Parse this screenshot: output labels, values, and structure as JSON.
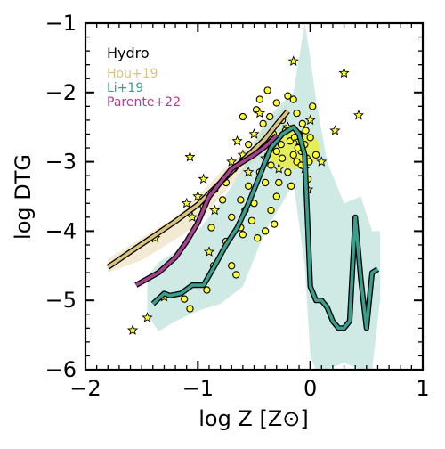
{
  "chart_data": {
    "type": "line",
    "title": "",
    "xlabel": "log Z [Z⊙]",
    "ylabel": "log DTG",
    "xlim": [
      -2,
      1
    ],
    "ylim": [
      -6,
      -1
    ],
    "xticks": [
      -2,
      -1,
      0,
      1
    ],
    "yticks": [
      -6,
      -5,
      -4,
      -3,
      -2,
      -1
    ],
    "xtick_labels": [
      "−2",
      "−1",
      "0",
      "1"
    ],
    "ytick_labels": [
      "−6",
      "−5",
      "−4",
      "−3",
      "−2",
      "−1"
    ],
    "grid": false,
    "legend_position": "top-left",
    "annotation": "Hydro",
    "colors": {
      "hou": "#d9c27a",
      "li": "#3a9e8e",
      "parente": "#a8408f",
      "band_li": "#b5dfd6",
      "band_hou": "#ece1bf",
      "points": "#ffff33"
    },
    "series": [
      {
        "name": "Hou+19",
        "color": "#d9c27a",
        "x": [
          -1.8,
          -1.6,
          -1.4,
          -1.2,
          -1.0,
          -0.8,
          -0.6,
          -0.4,
          -0.3,
          -0.2
        ],
        "y": [
          -4.52,
          -4.3,
          -4.08,
          -3.86,
          -3.62,
          -3.3,
          -2.98,
          -2.67,
          -2.46,
          -2.27
        ]
      },
      {
        "name": "Li+19",
        "color": "#3a9e8e",
        "x": [
          -1.4,
          -1.3,
          -1.25,
          -1.15,
          -1.05,
          -0.95,
          -0.85,
          -0.75,
          -0.65,
          -0.55,
          -0.45,
          -0.35,
          -0.25,
          -0.2,
          -0.15,
          -0.1,
          -0.05,
          0.0,
          0.05,
          0.1,
          0.15,
          0.2,
          0.25,
          0.3,
          0.35,
          0.4,
          0.45,
          0.5,
          0.55,
          0.6
        ],
        "y": [
          -5.05,
          -4.9,
          -4.93,
          -4.9,
          -4.78,
          -4.78,
          -4.5,
          -4.2,
          -3.95,
          -3.6,
          -3.2,
          -2.8,
          -2.6,
          -2.55,
          -2.5,
          -2.6,
          -2.9,
          -4.8,
          -5.0,
          -5.0,
          -5.1,
          -5.3,
          -5.4,
          -5.4,
          -5.3,
          -3.8,
          -4.7,
          -5.4,
          -4.6,
          -4.55
        ]
      },
      {
        "name": "Parente+22",
        "color": "#a8408f",
        "x": [
          -1.55,
          -1.35,
          -1.2,
          -1.1,
          -1.0,
          -0.9,
          -0.8,
          -0.7,
          -0.6,
          -0.5,
          -0.4,
          -0.3
        ],
        "y": [
          -4.78,
          -4.6,
          -4.38,
          -4.15,
          -3.88,
          -3.5,
          -3.3,
          -3.1,
          -3.0,
          -2.9,
          -2.78,
          -2.62
        ]
      }
    ],
    "band_li": {
      "x": [
        -1.45,
        -1.35,
        -1.2,
        -1.0,
        -0.8,
        -0.6,
        -0.4,
        -0.25,
        -0.15,
        -0.05,
        0.0,
        0.05,
        0.15,
        0.3,
        0.45,
        0.55,
        0.62
      ],
      "y_high": [
        -4.65,
        -4.45,
        -4.3,
        -4.0,
        -3.6,
        -3.1,
        -2.4,
        -2.15,
        -2.0,
        -1.0,
        -1.5,
        -2.1,
        -3.0,
        -3.6,
        -3.5,
        -4.0,
        -4.0
      ],
      "y_low": [
        -5.2,
        -5.45,
        -5.3,
        -5.15,
        -5.05,
        -4.8,
        -4.0,
        -3.6,
        -3.3,
        -4.5,
        -5.8,
        -6.0,
        -6.0,
        -5.9,
        -6.0,
        -6.0,
        -5.0
      ]
    },
    "band_hou": {
      "x": [
        -1.8,
        -1.5,
        -1.2,
        -1.0,
        -0.8,
        -0.6,
        -0.4,
        -0.2
      ],
      "y_high": [
        -4.4,
        -4.1,
        -3.8,
        -3.5,
        -3.15,
        -2.85,
        -2.5,
        -2.15
      ],
      "y_low": [
        -4.6,
        -4.42,
        -4.12,
        -3.9,
        -3.5,
        -3.15,
        -2.85,
        -2.45
      ]
    },
    "stars": [
      {
        "x": -1.58,
        "y": -5.43
      },
      {
        "x": -1.45,
        "y": -5.25
      },
      {
        "x": -1.38,
        "y": -4.1
      },
      {
        "x": -1.3,
        "y": -4.95
      },
      {
        "x": -1.1,
        "y": -3.6
      },
      {
        "x": -1.05,
        "y": -3.8
      },
      {
        "x": -1.0,
        "y": -3.5
      },
      {
        "x": -1.07,
        "y": -2.93
      },
      {
        "x": -0.85,
        "y": -3.7
      },
      {
        "x": -0.9,
        "y": -4.3
      },
      {
        "x": -0.6,
        "y": -2.9
      },
      {
        "x": -0.55,
        "y": -3.15
      },
      {
        "x": -0.5,
        "y": -2.6
      },
      {
        "x": -0.45,
        "y": -2.3
      },
      {
        "x": -0.35,
        "y": -2.8
      },
      {
        "x": -0.2,
        "y": -2.5
      },
      {
        "x": -0.15,
        "y": -1.55
      },
      {
        "x": -0.1,
        "y": -2.7
      },
      {
        "x": -0.05,
        "y": -3.1
      },
      {
        "x": 0.0,
        "y": -2.4
      },
      {
        "x": -0.02,
        "y": -3.4
      },
      {
        "x": 0.1,
        "y": -3.0
      },
      {
        "x": 0.22,
        "y": -2.55
      },
      {
        "x": 0.3,
        "y": -1.72
      },
      {
        "x": 0.43,
        "y": -2.33
      },
      {
        "x": -0.28,
        "y": -3.1
      },
      {
        "x": -0.4,
        "y": -2.95
      },
      {
        "x": -0.7,
        "y": -3.0
      },
      {
        "x": -0.95,
        "y": -3.25
      },
      {
        "x": -0.65,
        "y": -2.7
      }
    ],
    "circles": [
      {
        "x": -1.12,
        "y": -4.98
      },
      {
        "x": -1.07,
        "y": -5.12
      },
      {
        "x": -0.92,
        "y": -4.85
      },
      {
        "x": -0.86,
        "y": -4.5
      },
      {
        "x": -0.7,
        "y": -4.5
      },
      {
        "x": -0.66,
        "y": -4.63
      },
      {
        "x": -0.75,
        "y": -4.15
      },
      {
        "x": -0.6,
        "y": -4.05
      },
      {
        "x": -0.47,
        "y": -4.1
      },
      {
        "x": -0.4,
        "y": -4.0
      },
      {
        "x": -0.35,
        "y": -3.7
      },
      {
        "x": -0.3,
        "y": -3.5
      },
      {
        "x": -0.85,
        "y": -3.4
      },
      {
        "x": -0.75,
        "y": -3.3
      },
      {
        "x": -0.68,
        "y": -3.1
      },
      {
        "x": -0.62,
        "y": -3.55
      },
      {
        "x": -0.55,
        "y": -3.35
      },
      {
        "x": -0.5,
        "y": -3.6
      },
      {
        "x": -0.45,
        "y": -3.15
      },
      {
        "x": -0.4,
        "y": -3.3
      },
      {
        "x": -0.35,
        "y": -3.05
      },
      {
        "x": -0.3,
        "y": -2.85
      },
      {
        "x": -0.25,
        "y": -2.95
      },
      {
        "x": -0.2,
        "y": -3.15
      },
      {
        "x": -0.18,
        "y": -2.7
      },
      {
        "x": -0.15,
        "y": -2.9
      },
      {
        "x": -0.12,
        "y": -3.0
      },
      {
        "x": -0.1,
        "y": -2.6
      },
      {
        "x": -0.08,
        "y": -2.85
      },
      {
        "x": -0.05,
        "y": -2.75
      },
      {
        "x": -0.03,
        "y": -2.95
      },
      {
        "x": 0.0,
        "y": -2.65
      },
      {
        "x": -0.25,
        "y": -2.4
      },
      {
        "x": -0.3,
        "y": -2.15
      },
      {
        "x": -0.42,
        "y": -2.45
      },
      {
        "x": -0.48,
        "y": -2.25
      },
      {
        "x": -0.55,
        "y": -2.75
      },
      {
        "x": -0.6,
        "y": -2.35
      },
      {
        "x": -0.38,
        "y": -1.97
      },
      {
        "x": -0.45,
        "y": -2.1
      },
      {
        "x": -0.22,
        "y": -2.55
      },
      {
        "x": -0.12,
        "y": -2.3
      },
      {
        "x": -0.07,
        "y": -2.45
      },
      {
        "x": 0.02,
        "y": -2.2
      },
      {
        "x": -0.02,
        "y": -3.25
      },
      {
        "x": 0.05,
        "y": -2.9
      },
      {
        "x": -0.28,
        "y": -3.3
      },
      {
        "x": -0.17,
        "y": -3.35
      },
      {
        "x": -0.7,
        "y": -3.8
      },
      {
        "x": -0.78,
        "y": -3.55
      },
      {
        "x": -0.95,
        "y": -3.65
      },
      {
        "x": -0.88,
        "y": -3.95
      },
      {
        "x": -0.52,
        "y": -3.85
      },
      {
        "x": -0.32,
        "y": -3.9
      },
      {
        "x": -0.15,
        "y": -2.1
      },
      {
        "x": -0.2,
        "y": -2.05
      },
      {
        "x": -0.08,
        "y": -3.05
      },
      {
        "x": -0.11,
        "y": -2.8
      },
      {
        "x": -0.14,
        "y": -2.65
      },
      {
        "x": -0.26,
        "y": -2.75
      },
      {
        "x": -0.33,
        "y": -2.6
      },
      {
        "x": -0.36,
        "y": -2.35
      },
      {
        "x": -0.04,
        "y": -2.55
      },
      {
        "x": -0.01,
        "y": -3.0
      },
      {
        "x": -0.62,
        "y": -3.95
      },
      {
        "x": -0.58,
        "y": -3.7
      }
    ],
    "dense_cluster": {
      "x": -0.15,
      "y": -2.82
    }
  }
}
